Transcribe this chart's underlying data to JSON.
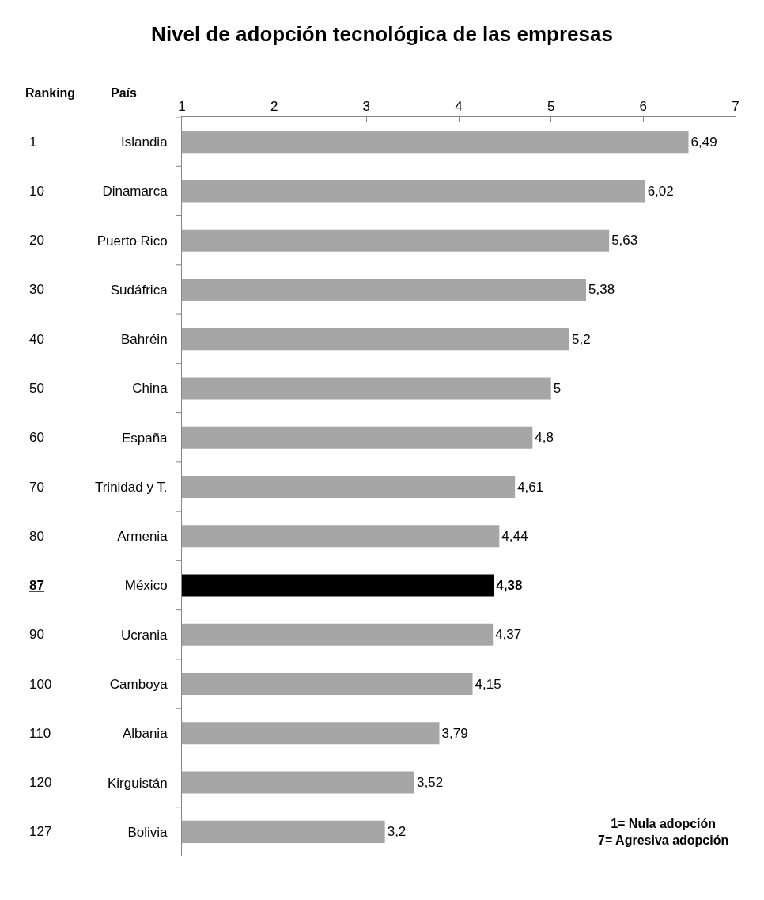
{
  "chart_data": {
    "type": "bar",
    "orientation": "horizontal",
    "title": "Nivel de adopción tecnológica de las empresas",
    "categories": [
      "Islandia",
      "Dinamarca",
      "Puerto Rico",
      "Sudáfrica",
      "Bahréin",
      "China",
      "España",
      "Trinidad y T.",
      "Armenia",
      "México",
      "Ucrania",
      "Camboya",
      "Albania",
      "Kirguistán",
      "Bolivia"
    ],
    "values": [
      6.49,
      6.02,
      5.63,
      5.38,
      5.2,
      5,
      4.8,
      4.61,
      4.44,
      4.38,
      4.37,
      4.15,
      3.79,
      3.52,
      3.2
    ],
    "value_labels": [
      "6,49",
      "6,02",
      "5,63",
      "5,38",
      "5,2",
      "5",
      "4,8",
      "4,61",
      "4,44",
      "4,38",
      "4,37",
      "4,15",
      "3,79",
      "3,52",
      "3,2"
    ],
    "colors": [
      "#a6a6a6",
      "#a6a6a6",
      "#a6a6a6",
      "#a6a6a6",
      "#a6a6a6",
      "#a6a6a6",
      "#a6a6a6",
      "#a6a6a6",
      "#a6a6a6",
      "#000000",
      "#a6a6a6",
      "#a6a6a6",
      "#a6a6a6",
      "#a6a6a6",
      "#a6a6a6"
    ],
    "xlim": [
      1,
      7
    ],
    "xticks": [
      1,
      2,
      3,
      4,
      5,
      6,
      7
    ],
    "annotations": [
      "Ranking",
      "País",
      "1",
      "10",
      "20",
      "30",
      "40",
      "50",
      "60",
      "70",
      "80",
      "87",
      "90",
      "100",
      "110",
      "120",
      "127",
      "1= Nula adopción\n7= Agresiva adopción"
    ]
  }
}
